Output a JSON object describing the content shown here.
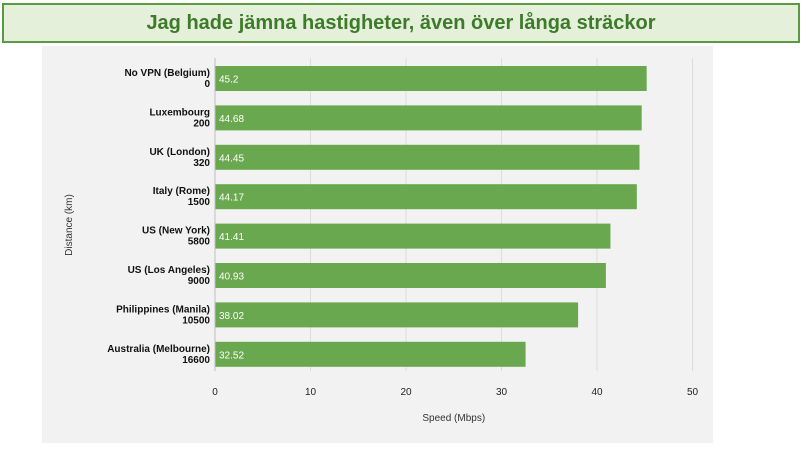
{
  "banner": {
    "title": "Jag hade jämna hastigheter, även över långa sträckor"
  },
  "colors": {
    "bar": "#6aa84f",
    "grid": "#dcdcdc",
    "panel": "#f2f2f2",
    "banner_border": "#5b9a40",
    "banner_bg": "#e4f0d9",
    "banner_text": "#3d7a2a"
  },
  "chart_data": {
    "type": "bar",
    "orientation": "horizontal",
    "xlabel": "Speed (Mbps)",
    "ylabel": "Distance (km)",
    "xlim": [
      0,
      50
    ],
    "xticks": [
      0,
      10,
      20,
      30,
      40,
      50
    ],
    "grid": true,
    "categories": [
      {
        "name": "No VPN (Belgium)",
        "distance": "0"
      },
      {
        "name": "Luxembourg",
        "distance": "200"
      },
      {
        "name": "UK (London)",
        "distance": "320"
      },
      {
        "name": "Italy (Rome)",
        "distance": "1500"
      },
      {
        "name": "US (New York)",
        "distance": "5800"
      },
      {
        "name": "US (Los Angeles)",
        "distance": "9000"
      },
      {
        "name": "Philippines (Manila)",
        "distance": "10500"
      },
      {
        "name": "Australia (Melbourne)",
        "distance": "16600"
      }
    ],
    "values": [
      45.2,
      44.68,
      44.45,
      44.17,
      41.41,
      40.93,
      38.02,
      32.52
    ]
  }
}
